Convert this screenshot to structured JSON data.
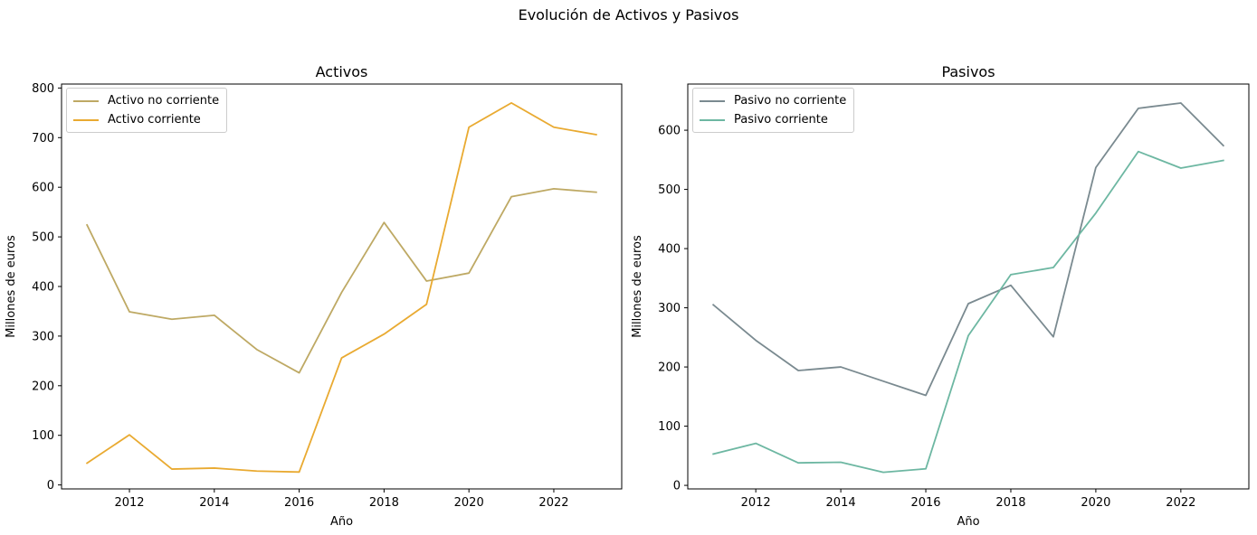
{
  "figure": {
    "suptitle": "Evolución de Activos y Pasivos"
  },
  "chart_data": [
    {
      "type": "line",
      "title": "Activos",
      "xlabel": "Año",
      "ylabel": "Millones de euros",
      "xlim": [
        2010.4,
        2023.6
      ],
      "ylim": [
        -8,
        808
      ],
      "xticks": [
        2012,
        2014,
        2016,
        2018,
        2020,
        2022
      ],
      "yticks": [
        0,
        100,
        200,
        300,
        400,
        500,
        600,
        700,
        800
      ],
      "grid": false,
      "legend": "top-left",
      "x": [
        2011,
        2012,
        2013,
        2014,
        2015,
        2016,
        2017,
        2018,
        2019,
        2020,
        2021,
        2022,
        2023
      ],
      "series": [
        {
          "name": "Activo no corriente",
          "color": "#bea964",
          "values": [
            524,
            349,
            334,
            342,
            273,
            226,
            388,
            529,
            411,
            427,
            581,
            597,
            590
          ]
        },
        {
          "name": "Activo corriente",
          "color": "#e9aa31",
          "values": [
            44,
            101,
            32,
            34,
            28,
            26,
            256,
            304,
            364,
            721,
            770,
            721,
            706
          ]
        }
      ]
    },
    {
      "type": "line",
      "title": "Pasivos",
      "xlabel": "Año",
      "ylabel": "Millones de euros",
      "xlim": [
        2010.4,
        2023.6
      ],
      "ylim": [
        -6,
        678
      ],
      "xticks": [
        2012,
        2014,
        2016,
        2018,
        2020,
        2022
      ],
      "yticks": [
        0,
        100,
        200,
        300,
        400,
        500,
        600
      ],
      "grid": false,
      "legend": "top-left",
      "x": [
        2011,
        2012,
        2013,
        2014,
        2015,
        2016,
        2017,
        2018,
        2019,
        2020,
        2021,
        2022,
        2023
      ],
      "series": [
        {
          "name": "Pasivo no corriente",
          "color": "#7a8a90",
          "values": [
            305,
            245,
            194,
            200,
            176,
            152,
            307,
            338,
            251,
            537,
            637,
            646,
            574
          ]
        },
        {
          "name": "Pasivo corriente",
          "color": "#6db7a2",
          "values": [
            53,
            71,
            38,
            39,
            22,
            28,
            253,
            356,
            368,
            460,
            564,
            536,
            549
          ]
        }
      ]
    }
  ]
}
